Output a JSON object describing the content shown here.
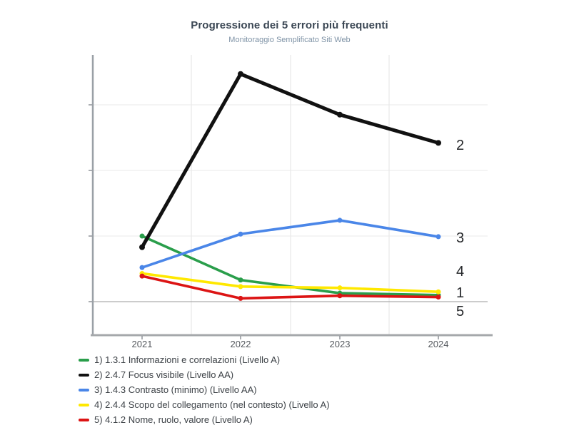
{
  "header": {
    "title": "Progressione dei 5 errori  più frequenti",
    "subtitle": "Monitoraggio Semplificato Siti Web"
  },
  "chart_data": {
    "type": "line",
    "categories": [
      "2021",
      "2022",
      "2023",
      "2024"
    ],
    "title": "Progressione dei 5 errori  più frequenti",
    "subtitle": "Monitoraggio Semplificato Siti Web",
    "xlabel": "",
    "ylabel": "",
    "y_axis": {
      "tick_labels_visible": false,
      "note": "y axis shows ticks and gridlines but no numeric labels; values estimated in gridline units (one unit = one gridline step above the darker zero line)",
      "gridline_values": [
        0,
        1,
        2,
        3
      ],
      "ylim": [
        0,
        3.8
      ]
    },
    "grid": "on",
    "legend_position": "bottom-left",
    "series": [
      {
        "key": "1",
        "name": "1) 1.3.1 Informazioni e correlazioni (Livello A)",
        "end_label": "1",
        "color": "#2a9e4b",
        "values": [
          1.0,
          0.33,
          0.13,
          0.1
        ]
      },
      {
        "key": "2",
        "name": "2) 2.4.7 Focus visibile (Livello AA)",
        "end_label": "2",
        "color": "#111111",
        "values": [
          0.83,
          3.47,
          2.85,
          2.42
        ]
      },
      {
        "key": "3",
        "name": "3) 1.4.3 Contrasto (minimo) (Livello AA)",
        "end_label": "3",
        "color": "#4a86e8",
        "values": [
          0.52,
          1.03,
          1.24,
          0.99
        ]
      },
      {
        "key": "4",
        "name": "4) 2.4.4 Scopo del collegamento (nel contesto) (Livello A)",
        "end_label": "4",
        "color": "#ffe800",
        "values": [
          0.43,
          0.23,
          0.21,
          0.15
        ]
      },
      {
        "key": "5",
        "name": "5) 4.1.2 Nome, ruolo, valore (Livello A)",
        "end_label": "5",
        "color": "#dc1414",
        "values": [
          0.39,
          0.05,
          0.09,
          0.07
        ]
      }
    ],
    "colors": {
      "axis": "#9aa0a6",
      "gridline_light": "#e9e9e9",
      "gridline_vertical": "#e3e3e3",
      "zero_line": "#9a9a9a",
      "x_tick_label": "#55595e",
      "end_label": "#26282b"
    }
  }
}
